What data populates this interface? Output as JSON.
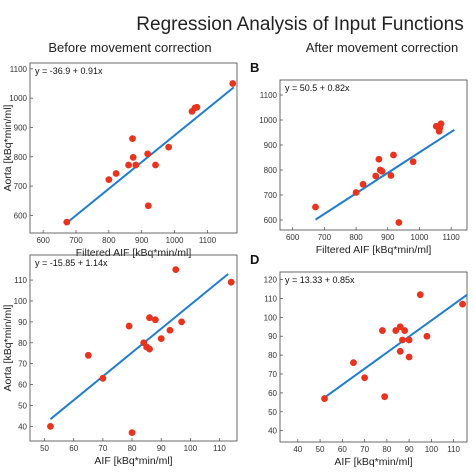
{
  "title": "Regression Analysis of Input Functions",
  "subtitle_left": "Before movement correction",
  "subtitle_right": "After movement correction",
  "colors": {
    "point": "#e8331f",
    "line": "#1f7dd0",
    "axis": "#444444"
  },
  "chart_data": [
    {
      "id": "A",
      "type": "scatter",
      "panel_label": "",
      "equation": "y = -36.9 + 0.91x",
      "xlabel": "Filtered AIF [kBq*min/ml]",
      "ylabel": "Aorta [kBq*min/ml]",
      "xlim": [
        560,
        1190
      ],
      "ylim": [
        540,
        1120
      ],
      "xticks": [
        600,
        700,
        800,
        900,
        1000,
        1100
      ],
      "yticks": [
        600,
        700,
        800,
        900,
        1000,
        1100
      ],
      "x": [
        672,
        800,
        822,
        860,
        872,
        874,
        882,
        918,
        920,
        942,
        982,
        1053,
        1062,
        1068,
        1177
      ],
      "y": [
        577,
        722,
        743,
        772,
        862,
        798,
        772,
        810,
        633,
        772,
        833,
        955,
        967,
        969,
        1050
      ],
      "fit": {
        "intercept": -36.9,
        "slope": 0.91,
        "x_range": [
          672,
          1180
        ]
      }
    },
    {
      "id": "B",
      "type": "scatter",
      "panel_label": "B",
      "equation": "y = 50.5 + 0.82x",
      "xlabel": "Filtered AIF [kBq*min/ml]",
      "ylabel": "",
      "xlim": [
        560,
        1150
      ],
      "ylim": [
        560,
        1160
      ],
      "xticks": [
        600,
        700,
        800,
        900,
        1000,
        1100
      ],
      "yticks": [
        600,
        700,
        800,
        900,
        1000,
        1100
      ],
      "x": [
        672,
        800,
        822,
        862,
        872,
        876,
        882,
        910,
        918,
        935,
        980,
        1053,
        1062,
        1064,
        1068
      ],
      "y": [
        652,
        710,
        743,
        776,
        843,
        800,
        795,
        778,
        860,
        590,
        833,
        975,
        955,
        968,
        985
      ],
      "fit": {
        "intercept": 50.5,
        "slope": 0.82,
        "x_range": [
          672,
          1110
        ]
      }
    },
    {
      "id": "C",
      "type": "scatter",
      "panel_label": "",
      "equation": "y = -15.85 + 1.14x",
      "xlabel": "AIF [kBq*min/ml]",
      "ylabel": "Aorta [kBq*min/ml]",
      "xlim": [
        45,
        116
      ],
      "ylim": [
        33,
        122
      ],
      "xticks": [
        50,
        60,
        70,
        80,
        90,
        100,
        110
      ],
      "yticks": [
        40,
        50,
        60,
        70,
        80,
        90,
        100,
        110
      ],
      "x": [
        52,
        65,
        70,
        79,
        80,
        84,
        85,
        86,
        86,
        88,
        90,
        93,
        95,
        97,
        114
      ],
      "y": [
        40,
        74,
        63,
        88,
        37,
        80,
        78,
        92,
        77,
        91,
        82,
        86,
        115,
        90,
        109
      ],
      "fit": {
        "intercept": -15.85,
        "slope": 1.14,
        "x_range": [
          52,
          113
        ]
      }
    },
    {
      "id": "D",
      "type": "scatter",
      "panel_label": "D",
      "equation": "y = 13.33 + 0.85x",
      "xlabel": "AIF [kBq*min/ml]",
      "ylabel": "",
      "xlim": [
        32,
        116
      ],
      "ylim": [
        34,
        124
      ],
      "xticks": [
        40,
        50,
        60,
        70,
        80,
        90,
        100,
        110
      ],
      "yticks": [
        40,
        50,
        60,
        70,
        80,
        90,
        100,
        110,
        120
      ],
      "x": [
        52,
        65,
        70,
        78,
        79,
        84,
        86,
        86,
        87,
        88,
        90,
        90,
        95,
        98,
        114
      ],
      "y": [
        57,
        76,
        68,
        93,
        58,
        93,
        95,
        82,
        88,
        93,
        79,
        88,
        112,
        90,
        107
      ],
      "fit": {
        "intercept": 13.33,
        "slope": 0.85,
        "x_range": [
          52,
          116
        ]
      }
    }
  ]
}
